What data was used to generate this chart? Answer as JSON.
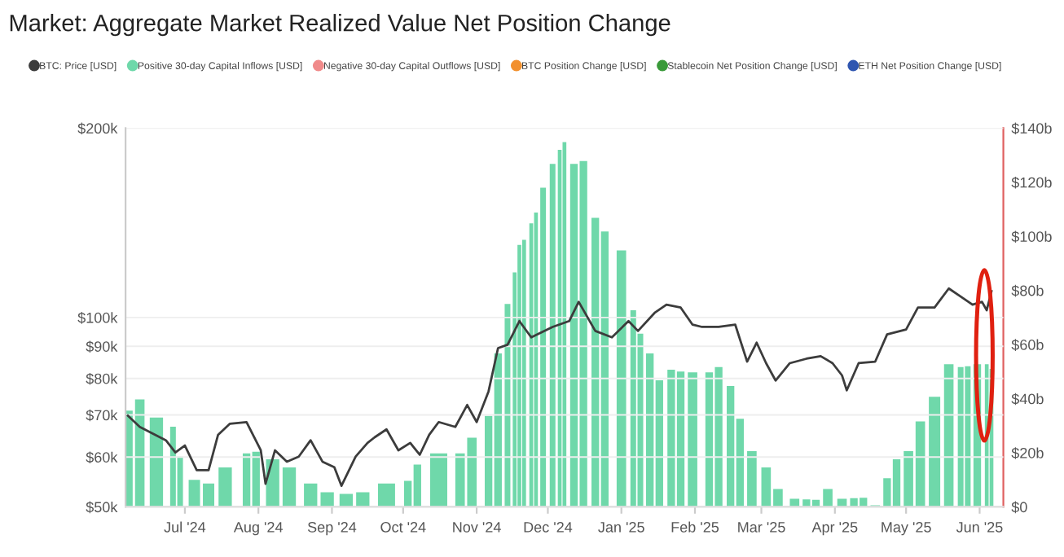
{
  "chart_data": {
    "type": "line",
    "title": "Market: Aggregate Market Realized Value Net Position Change",
    "legend": "top",
    "grid": "y",
    "log": "y",
    "marker": "none",
    "line_style": "solid",
    "xlim": [
      "2024-06-06",
      "2025-06-11"
    ],
    "xticks": [
      {
        "value": "2024-07-01",
        "label": "Jul '24"
      },
      {
        "value": "2024-08-01",
        "label": "Aug '24"
      },
      {
        "value": "2024-09-01",
        "label": "Sep '24"
      },
      {
        "value": "2024-10-01",
        "label": "Oct '24"
      },
      {
        "value": "2024-11-01",
        "label": "Nov '24"
      },
      {
        "value": "2024-12-01",
        "label": "Dec '24"
      },
      {
        "value": "2025-01-01",
        "label": "Jan '25"
      },
      {
        "value": "2025-02-01",
        "label": "Feb '25"
      },
      {
        "value": "2025-03-01",
        "label": "Mar '25"
      },
      {
        "value": "2025-04-01",
        "label": "Apr '25"
      },
      {
        "value": "2025-05-01",
        "label": "May '25"
      },
      {
        "value": "2025-06-01",
        "label": "Jun '25"
      }
    ],
    "ylim": [
      50,
      200
    ],
    "yticks": [
      {
        "value": 50,
        "label": "$50k"
      },
      {
        "value": 60,
        "label": "$60k"
      },
      {
        "value": 70,
        "label": "$70k"
      },
      {
        "value": 80,
        "label": "$80k"
      },
      {
        "value": 90,
        "label": "$90k"
      },
      {
        "value": 100,
        "label": "$100k"
      },
      {
        "value": 200,
        "label": "$200k"
      }
    ],
    "y2lim": [
      0,
      140
    ],
    "y2ticks": [
      {
        "value": 0,
        "label": "$0"
      },
      {
        "value": 20,
        "label": "$20b"
      },
      {
        "value": 40,
        "label": "$40b"
      },
      {
        "value": 60,
        "label": "$60b"
      },
      {
        "value": 80,
        "label": "$80b"
      },
      {
        "value": 100,
        "label": "$100b"
      },
      {
        "value": 120,
        "label": "$120b"
      },
      {
        "value": 140,
        "label": "$140b"
      }
    ],
    "series": [
      {
        "name": "BTC: Price [USD]",
        "color": "#3c3c3c",
        "x": [
          "2024-06-07",
          "2024-06-12",
          "2024-06-23",
          "2024-06-27",
          "2024-07-01",
          "2024-07-06",
          "2024-07-11",
          "2024-07-15",
          "2024-07-20",
          "2024-07-27",
          "2024-08-02",
          "2024-08-04",
          "2024-08-08",
          "2024-08-13",
          "2024-08-18",
          "2024-08-23",
          "2024-08-28",
          "2024-09-02",
          "2024-09-05",
          "2024-09-11",
          "2024-09-16",
          "2024-09-19",
          "2024-09-24",
          "2024-09-29",
          "2024-10-04",
          "2024-10-08",
          "2024-10-12",
          "2024-10-16",
          "2024-10-23",
          "2024-10-28",
          "2024-11-01",
          "2024-11-06",
          "2024-11-10",
          "2024-11-14",
          "2024-11-19",
          "2024-11-24",
          "2024-12-03",
          "2024-12-10",
          "2024-12-14",
          "2024-12-21",
          "2024-12-28",
          "2025-01-04",
          "2025-01-08",
          "2025-01-15",
          "2025-01-20",
          "2025-01-26",
          "2025-01-31",
          "2025-02-04",
          "2025-02-11",
          "2025-02-18",
          "2025-02-23",
          "2025-02-27",
          "2025-03-03",
          "2025-03-07",
          "2025-03-13",
          "2025-03-20",
          "2025-03-26",
          "2025-03-31",
          "2025-04-04",
          "2025-04-06",
          "2025-04-11",
          "2025-04-18",
          "2025-04-23",
          "2025-05-01",
          "2025-05-06",
          "2025-05-13",
          "2025-05-19",
          "2025-05-24",
          "2025-05-29",
          "2025-06-02",
          "2025-06-04",
          "2025-06-06"
        ],
        "values": [
          69.8,
          67.0,
          63.8,
          61.0,
          62.6,
          57.2,
          57.2,
          65.1,
          67.8,
          68.2,
          61.5,
          54.4,
          61.5,
          59.0,
          60.1,
          63.8,
          59.0,
          57.8,
          54.0,
          60.1,
          63.2,
          64.5,
          66.4,
          61.5,
          63.2,
          60.5,
          65.1,
          68.2,
          67.0,
          72.6,
          68.2,
          76.3,
          89.4,
          90.5,
          98.7,
          93.0,
          96.6,
          98.7,
          105.9,
          95.2,
          93.0,
          98.7,
          95.2,
          101.7,
          104.8,
          103.7,
          97.4,
          96.6,
          96.6,
          97.4,
          85.1,
          91.2,
          84.6,
          79.4,
          84.6,
          86.0,
          86.8,
          84.6,
          80.9,
          76.6,
          84.6,
          85.1,
          94.0,
          95.7,
          103.7,
          103.7,
          111.2,
          108.0,
          104.8,
          105.9,
          102.7,
          110.1
        ]
      },
      {
        "name": "Positive 30-day Capital Inflows [USD]",
        "type": "bar",
        "axis": "y2",
        "color": "#6fd8aa",
        "x": [
          "2024-06-07",
          "2024-06-12",
          "2024-06-19",
          "2024-06-26",
          "2024-06-29",
          "2024-07-05",
          "2024-07-11",
          "2024-07-18",
          "2024-07-27",
          "2024-07-31",
          "2024-08-07",
          "2024-08-14",
          "2024-08-23",
          "2024-08-30",
          "2024-09-07",
          "2024-09-14",
          "2024-09-24",
          "2024-10-03",
          "2024-10-07",
          "2024-10-16",
          "2024-10-25",
          "2024-10-30",
          "2024-11-06",
          "2024-11-10",
          "2024-11-14",
          "2024-11-17",
          "2024-11-19",
          "2024-11-21",
          "2024-11-24",
          "2024-11-26",
          "2024-11-29",
          "2024-12-03",
          "2024-12-06",
          "2024-12-08",
          "2024-12-12",
          "2024-12-16",
          "2024-12-21",
          "2024-12-25",
          "2025-01-01",
          "2025-01-06",
          "2025-01-09",
          "2025-01-13",
          "2025-01-17",
          "2025-01-22",
          "2025-01-26",
          "2025-01-31",
          "2025-02-07",
          "2025-02-11",
          "2025-02-16",
          "2025-02-20",
          "2025-02-25",
          "2025-03-03",
          "2025-03-08",
          "2025-03-15",
          "2025-03-20",
          "2025-03-24",
          "2025-03-29",
          "2025-04-04",
          "2025-04-09",
          "2025-04-13",
          "2025-04-18",
          "2025-04-23",
          "2025-04-27",
          "2025-05-02",
          "2025-05-07",
          "2025-05-13",
          "2025-05-19",
          "2025-05-24",
          "2025-05-27",
          "2025-05-31",
          "2025-06-04",
          "2025-06-06"
        ],
        "values": [
          35.6,
          39.7,
          33,
          29.6,
          18.6,
          10,
          8.6,
          14.6,
          19.8,
          20.4,
          17.6,
          14.6,
          8.6,
          5.4,
          4.8,
          5.4,
          8.6,
          9.6,
          15.6,
          19.8,
          19.8,
          25.6,
          33.6,
          56.7,
          75,
          86.7,
          96.8,
          98.7,
          104.8,
          108.8,
          118,
          126.8,
          132,
          134.8,
          126.8,
          127.8,
          106.8,
          101.8,
          94.8,
          72.7,
          64,
          56.7,
          46.8,
          50.7,
          50,
          49.7,
          49.7,
          51.7,
          44.7,
          32.6,
          20.6,
          14.6,
          6.6,
          3.0,
          2.8,
          2.6,
          6.6,
          3.0,
          3.2,
          3.4,
          0.6,
          10.6,
          17.6,
          20.6,
          31.6,
          40.7,
          52.7,
          51.7,
          52,
          52.7,
          52.7,
          51
        ]
      },
      {
        "name": "Negative 30-day Capital Outflows [USD]",
        "type": "bar",
        "axis": "y2",
        "color": "#f08a8a"
      },
      {
        "name": "BTC Position Change [USD]",
        "type": "bar",
        "axis": "y2",
        "color": "#f2902e"
      },
      {
        "name": "Stablecoin Net Position Change [USD]",
        "type": "bar",
        "axis": "y2",
        "color": "#3a9a3a"
      },
      {
        "name": "ETH Net Position Change [USD]",
        "type": "bar",
        "axis": "y2",
        "color": "#2f56b0"
      }
    ]
  }
}
